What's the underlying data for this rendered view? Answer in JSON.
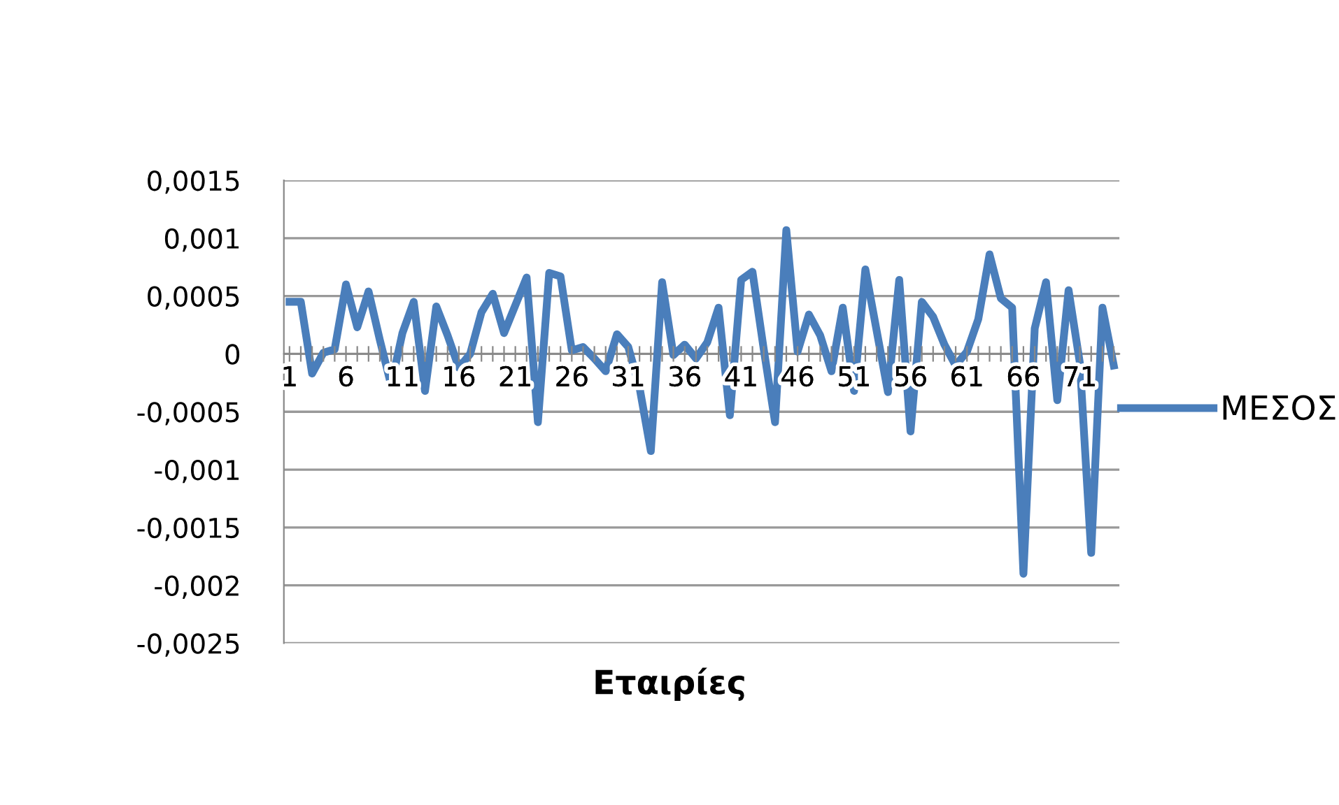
{
  "chart_data": {
    "type": "line",
    "xlabel": "Εταιρίες",
    "categories": [
      "1",
      null,
      null,
      null,
      null,
      "6",
      null,
      null,
      null,
      null,
      "11",
      null,
      null,
      null,
      null,
      "16",
      null,
      null,
      null,
      null,
      "21",
      null,
      null,
      null,
      null,
      "26",
      null,
      null,
      null,
      null,
      "31",
      null,
      null,
      null,
      null,
      "36",
      null,
      null,
      null,
      null,
      "41",
      null,
      null,
      null,
      null,
      "46",
      null,
      null,
      null,
      null,
      "51",
      null,
      null,
      null,
      null,
      "56",
      null,
      null,
      null,
      null,
      "61",
      null,
      null,
      null,
      null,
      "66",
      null,
      null,
      null,
      null,
      "71",
      null,
      null,
      null
    ],
    "series": [
      {
        "name": "ΜΕΣΟΣ",
        "color": "#4a7ebb",
        "values": [
          0.00045,
          0.00045,
          -0.00017,
          1e-05,
          4e-05,
          0.0006,
          0.00023,
          0.00054,
          0.00012,
          -0.00027,
          0.00018,
          0.00045,
          -0.00032,
          0.00041,
          0.00016,
          -0.00012,
          0.0,
          0.00036,
          0.00052,
          0.00018,
          0.00042,
          0.00066,
          -0.00059,
          0.0007,
          0.00067,
          3e-05,
          6e-05,
          -4e-05,
          -0.00015,
          0.00017,
          6e-05,
          -0.00029,
          -0.00084,
          0.00062,
          -1e-05,
          8e-05,
          -4e-05,
          0.0001,
          0.0004,
          -0.00053,
          0.00064,
          0.00071,
          4e-05,
          -0.00059,
          0.00107,
          2e-05,
          0.00034,
          0.00016,
          -0.00015,
          0.0004,
          -0.00032,
          0.00073,
          0.0002,
          -0.00033,
          0.00064,
          -0.00067,
          0.00045,
          0.00032,
          8e-05,
          -0.0001,
          2e-05,
          0.0003,
          0.00086,
          0.00048,
          0.0004,
          -0.0019,
          0.00022,
          0.00062,
          -0.0004,
          0.00055,
          -8e-05,
          -0.00172,
          0.0004,
          -0.0001
        ]
      }
    ],
    "ylim": [
      -0.0025,
      0.0015
    ],
    "yticks": [
      {
        "value": -0.0025,
        "label": "-0,0025"
      },
      {
        "value": -0.002,
        "label": "-0,002"
      },
      {
        "value": -0.0015,
        "label": "-0,0015"
      },
      {
        "value": -0.001,
        "label": "-0,001"
      },
      {
        "value": -0.0005,
        "label": "-0,0005"
      },
      {
        "value": 0,
        "label": "0"
      },
      {
        "value": 0.0005,
        "label": "0,0005"
      },
      {
        "value": 0.001,
        "label": "0,001"
      },
      {
        "value": 0.0015,
        "label": "0,0015"
      }
    ],
    "grid": "y",
    "legend": "right",
    "marker": "none",
    "line_style": "solid"
  }
}
